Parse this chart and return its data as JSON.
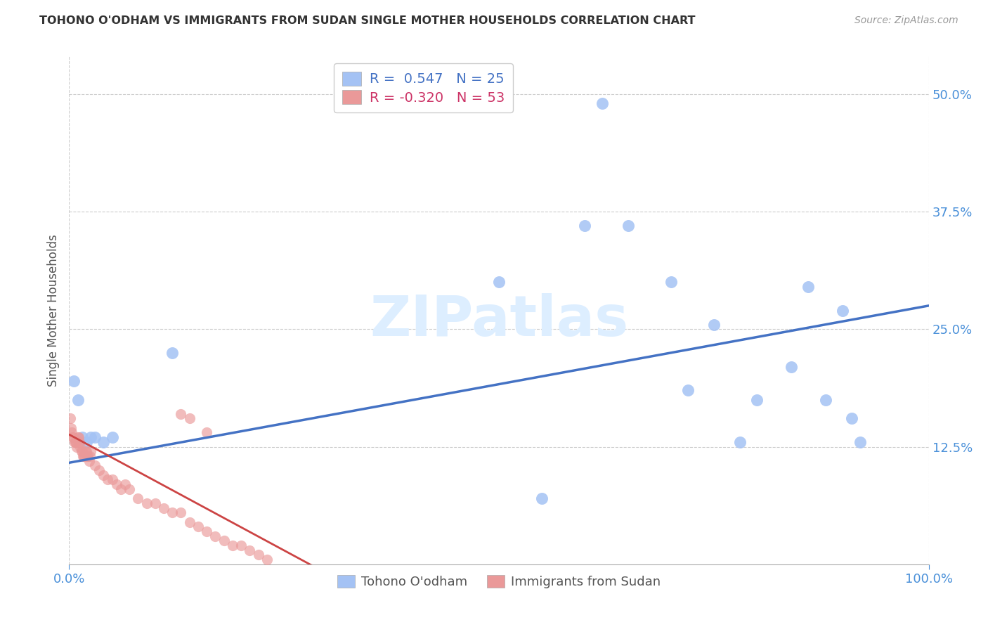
{
  "title": "TOHONO O'ODHAM VS IMMIGRANTS FROM SUDAN SINGLE MOTHER HOUSEHOLDS CORRELATION CHART",
  "source": "Source: ZipAtlas.com",
  "tick_color": "#4a90d9",
  "ylabel": "Single Mother Households",
  "legend_label1": "Tohono O'odham",
  "legend_label2": "Immigrants from Sudan",
  "legend_r1": "R =  0.547",
  "legend_n1": "N = 25",
  "legend_r2": "R = -0.320",
  "legend_n2": "N = 53",
  "blue_color": "#a4c2f4",
  "pink_color": "#ea9999",
  "line_blue": "#4472c4",
  "line_pink": "#cc4444",
  "watermark_color": "#ddeeff",
  "blue_scatter_x": [
    0.005,
    0.01,
    0.015,
    0.02,
    0.025,
    0.03,
    0.04,
    0.05,
    0.12,
    0.62,
    0.65,
    0.7,
    0.75,
    0.8,
    0.84,
    0.86,
    0.88,
    0.9,
    0.91,
    0.92,
    0.5,
    0.55,
    0.6,
    0.72,
    0.78
  ],
  "blue_scatter_y": [
    0.195,
    0.175,
    0.135,
    0.13,
    0.135,
    0.135,
    0.13,
    0.135,
    0.225,
    0.49,
    0.36,
    0.3,
    0.255,
    0.175,
    0.21,
    0.295,
    0.175,
    0.27,
    0.155,
    0.13,
    0.3,
    0.07,
    0.36,
    0.185,
    0.13
  ],
  "pink_scatter_x": [
    0.001,
    0.002,
    0.003,
    0.004,
    0.005,
    0.006,
    0.007,
    0.008,
    0.009,
    0.01,
    0.011,
    0.012,
    0.013,
    0.014,
    0.015,
    0.016,
    0.017,
    0.018,
    0.019,
    0.02,
    0.021,
    0.022,
    0.023,
    0.024,
    0.025,
    0.03,
    0.035,
    0.04,
    0.045,
    0.05,
    0.055,
    0.06,
    0.065,
    0.07,
    0.08,
    0.09,
    0.1,
    0.11,
    0.12,
    0.13,
    0.14,
    0.15,
    0.16,
    0.17,
    0.18,
    0.19,
    0.2,
    0.21,
    0.22,
    0.23,
    0.13,
    0.14,
    0.16
  ],
  "pink_scatter_y": [
    0.155,
    0.145,
    0.14,
    0.135,
    0.135,
    0.13,
    0.13,
    0.13,
    0.125,
    0.135,
    0.135,
    0.13,
    0.125,
    0.12,
    0.12,
    0.115,
    0.115,
    0.115,
    0.12,
    0.12,
    0.115,
    0.115,
    0.11,
    0.115,
    0.12,
    0.105,
    0.1,
    0.095,
    0.09,
    0.09,
    0.085,
    0.08,
    0.085,
    0.08,
    0.07,
    0.065,
    0.065,
    0.06,
    0.055,
    0.055,
    0.045,
    0.04,
    0.035,
    0.03,
    0.025,
    0.02,
    0.02,
    0.015,
    0.01,
    0.005,
    0.16,
    0.155,
    0.14
  ],
  "xlim": [
    0.0,
    1.0
  ],
  "ylim": [
    0.0,
    0.54
  ],
  "blue_line_x": [
    0.0,
    1.0
  ],
  "blue_line_y": [
    0.108,
    0.275
  ],
  "pink_line_x": [
    0.0,
    0.28
  ],
  "pink_line_y": [
    0.138,
    0.0
  ],
  "x_ticks": [
    0.0,
    1.0
  ],
  "y_ticks": [
    0.125,
    0.25,
    0.375,
    0.5
  ]
}
